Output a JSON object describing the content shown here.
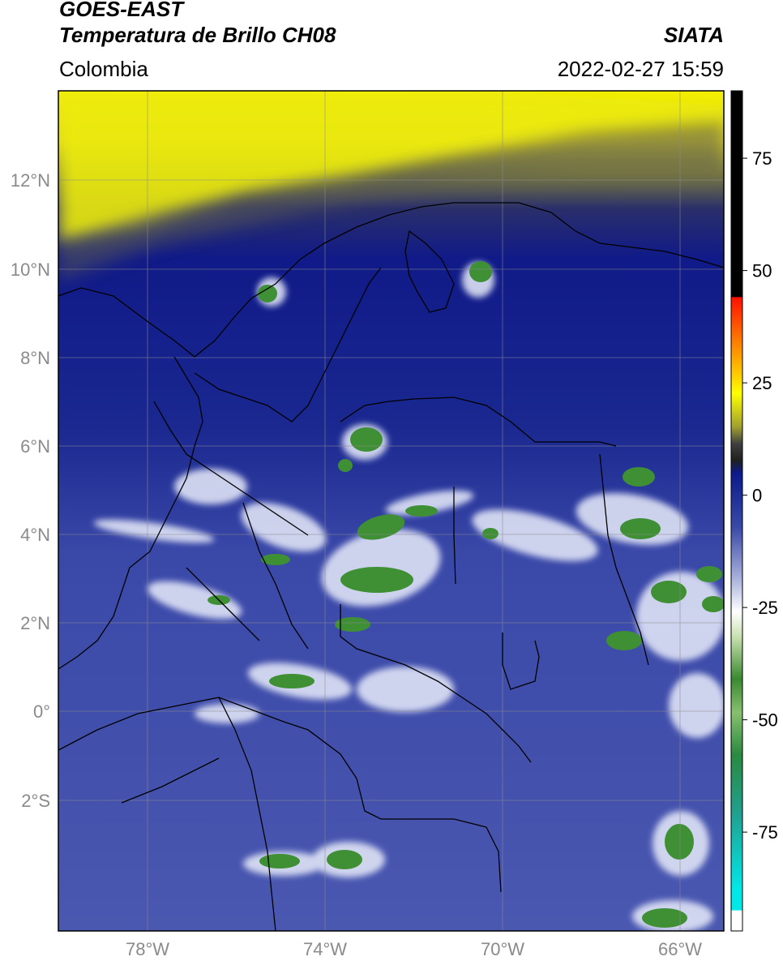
{
  "header": {
    "satellite": "GOES-EAST",
    "product": "Temperatura de Brillo CH08",
    "region": "Colombia",
    "source": "SIATA",
    "datetime": "2022-02-27 15:59"
  },
  "map": {
    "lat_ticks": [
      "12°N",
      "10°N",
      "8°N",
      "6°N",
      "4°N",
      "2°N",
      "0°",
      "2°S"
    ],
    "lon_ticks": [
      "78°W",
      "74°W",
      "70°W",
      "66°W"
    ],
    "extent": {
      "lon_min": -80.0,
      "lon_max": -65.0,
      "lat_min": -5.2,
      "lat_max": 14.0
    }
  },
  "colorbar": {
    "ticks": [
      "75",
      "50",
      "25",
      "0",
      "-25",
      "-50",
      "-75"
    ],
    "tick_values": [
      75,
      50,
      25,
      0,
      -25,
      -50,
      -75
    ],
    "range": [
      -97,
      90
    ],
    "colors": {
      "high": "#000000",
      "red": "#ff2000",
      "orange": "#ff9900",
      "yellow": "#ffff00",
      "olive": "#a0a030",
      "dark": "#303030",
      "navy": "#0d1a8c",
      "blue_mid": "#4a5ab5",
      "lavender": "#c8cce8",
      "white": "#ffffff",
      "green_light": "#88c070",
      "green": "#3a8a30",
      "teal": "#20a080",
      "cyan": "#00e0e0"
    }
  }
}
